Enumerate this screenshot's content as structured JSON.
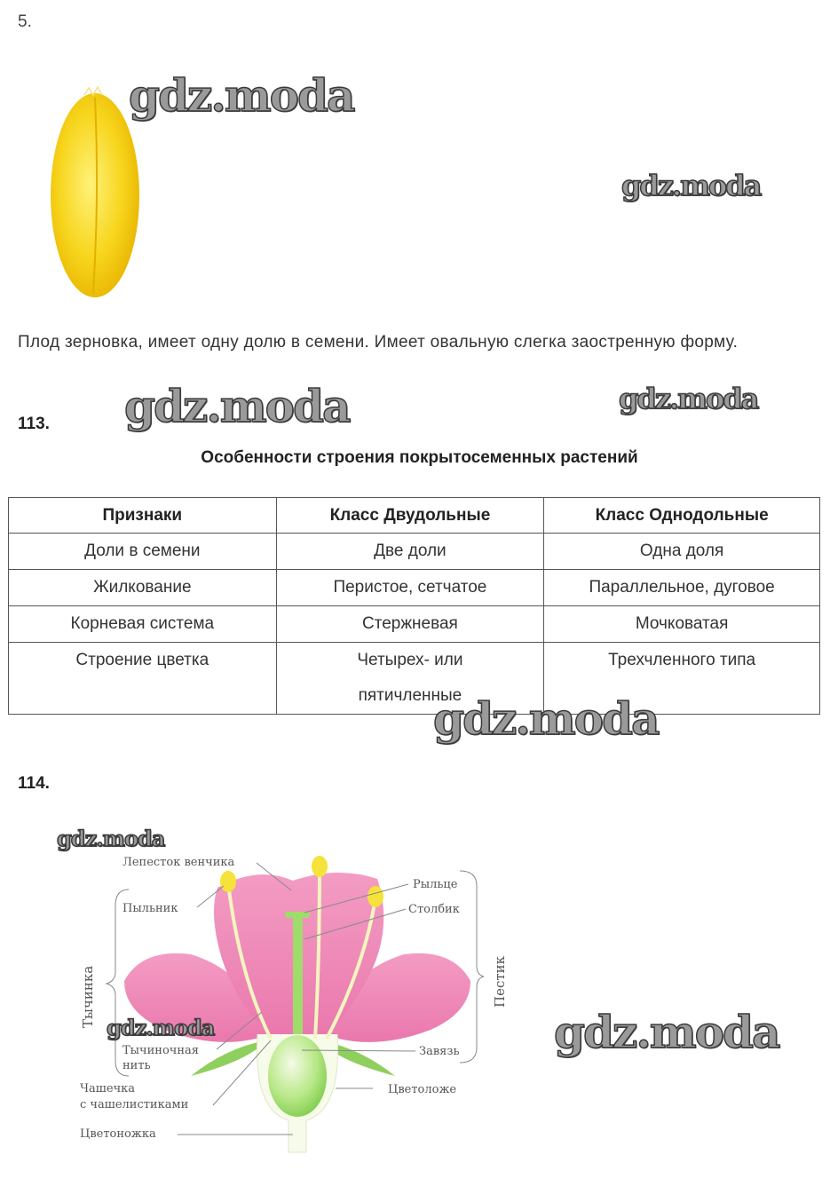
{
  "task5": {
    "number": "5.",
    "text": "Плод зерновка, имеет одну долю в семени. Имеет овальную слегка заостренную форму."
  },
  "task113": {
    "number": "113.",
    "caption": "Особенности строения покрытосеменных растений",
    "table": {
      "headers": [
        "Признаки",
        "Класс Двудольные",
        "Класс Однодольные"
      ],
      "rows": [
        [
          "Доли в семени",
          "Две доли",
          "Одна доля"
        ],
        [
          "Жилкование",
          "Перистое, сетчатое",
          "Параллельное, дуговое"
        ],
        [
          "Корневая система",
          "Стержневая",
          "Мочковатая"
        ],
        [
          "Строение цветка",
          "Четырех- или пятичленные",
          "Трехчленного типа"
        ]
      ]
    }
  },
  "task114": {
    "number": "114.",
    "diagram_labels": {
      "petal": "Лепесток венчика",
      "anther": "Пыльник",
      "stigma": "Рыльце",
      "style": "Столбик",
      "stamen": "Тычинка",
      "pistil": "Пестик",
      "filament_1": "Тычиночная",
      "filament_2": "нить",
      "ovary": "Завязь",
      "calyx_1": "Чашечка",
      "calyx_2": "с чашелистиками",
      "receptacle": "Цветоложе",
      "pedicel": "Цветоножка"
    }
  },
  "watermark": "gdz.moda",
  "colors": {
    "petal": "#f08cb8",
    "anther": "#f5e23a",
    "pistil": "#9fdc6a",
    "grain": "#f7d51c"
  }
}
